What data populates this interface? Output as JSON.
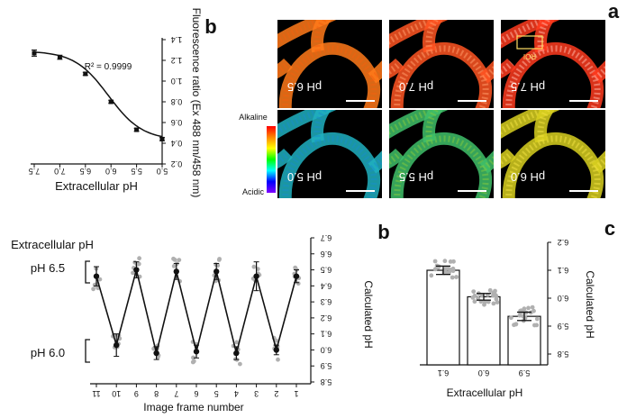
{
  "panels": {
    "a": {
      "letter": "a",
      "tiles": [
        {
          "label": "pH 7.5",
          "palette": "warm-red",
          "roi_label": "ROI"
        },
        {
          "label": "pH 7.0",
          "palette": "warm-orange-red"
        },
        {
          "label": "pH 6.5",
          "palette": "warm-orange"
        },
        {
          "label": "pH 6.0",
          "palette": "cool-yellow"
        },
        {
          "label": "pH 5.5",
          "palette": "cool-green"
        },
        {
          "label": "pH 5.0",
          "palette": "cool-teal"
        }
      ],
      "colorbar": {
        "top_label": "Alkaline",
        "bottom_label": "Acidic",
        "colors": [
          "#ff0000",
          "#ff8800",
          "#ffff00",
          "#00ff00",
          "#00ffff",
          "#0000ff",
          "#8000ff"
        ]
      }
    },
    "b_top": {
      "letter": "b"
    },
    "b_bottom": {
      "letter": "b"
    },
    "c": {
      "letter": "c"
    }
  },
  "chart_data": [
    {
      "id": "calibration",
      "type": "line",
      "xlabel": "Extracellular pH",
      "ylabel": "Fluorescence ratio (Ex 488 nm/458 nm)",
      "x_ticks": [
        "5.0",
        "5.5",
        "6.0",
        "6.5",
        "7.0",
        "7.5"
      ],
      "y_ticks": [
        "0.2",
        "0.4",
        "0.6",
        "0.8",
        "1.0",
        "1.2",
        "1.4"
      ],
      "xlim": [
        5.0,
        7.5
      ],
      "ylim": [
        0.2,
        1.4
      ],
      "x_reversed": true,
      "annotation": "R² = 0.9999",
      "x": [
        7.5,
        7.0,
        6.5,
        6.0,
        5.5,
        5.0
      ],
      "y": [
        1.27,
        1.23,
        1.07,
        0.8,
        0.53,
        0.44
      ],
      "err": [
        0.03,
        0.02,
        0.015,
        0.015,
        0.015,
        0.015
      ]
    },
    {
      "id": "frames",
      "type": "line",
      "xlabel": "Image frame number",
      "ylabel": "Calculated pH",
      "x_ticks": [
        "1",
        "2",
        "3",
        "4",
        "5",
        "6",
        "7",
        "8",
        "9",
        "10",
        "11"
      ],
      "y_ticks": [
        "5.8",
        "5.9",
        "6.0",
        "6.1",
        "6.2",
        "6.3",
        "6.4",
        "6.5",
        "6.6",
        "6.7"
      ],
      "xlim": [
        1,
        11
      ],
      "ylim": [
        5.8,
        6.7
      ],
      "x_reversed": true,
      "legend_title": "Extracellular pH",
      "bracket_labels": [
        "pH 6.5",
        "pH 6.0"
      ],
      "x": [
        1,
        2,
        3,
        4,
        5,
        6,
        7,
        8,
        9,
        10,
        11
      ],
      "y": [
        6.46,
        6.0,
        6.46,
        5.98,
        6.49,
        5.99,
        6.49,
        5.98,
        6.5,
        6.03,
        6.46
      ],
      "err": [
        0.04,
        0.03,
        0.09,
        0.04,
        0.05,
        0.04,
        0.05,
        0.04,
        0.05,
        0.07,
        0.06
      ]
    },
    {
      "id": "bars",
      "type": "bar",
      "xlabel": "Extracellular pH",
      "ylabel": "Calculated pH",
      "categories": [
        "5.9",
        "6.0",
        "6.1"
      ],
      "values": [
        5.935,
        6.005,
        6.1
      ],
      "err": [
        0.015,
        0.012,
        0.015
      ],
      "y_ticks": [
        "5.8",
        "5.9",
        "6.0",
        "6.1",
        "6.2"
      ],
      "ylim": [
        5.8,
        6.2
      ],
      "x_reversed": true
    }
  ]
}
